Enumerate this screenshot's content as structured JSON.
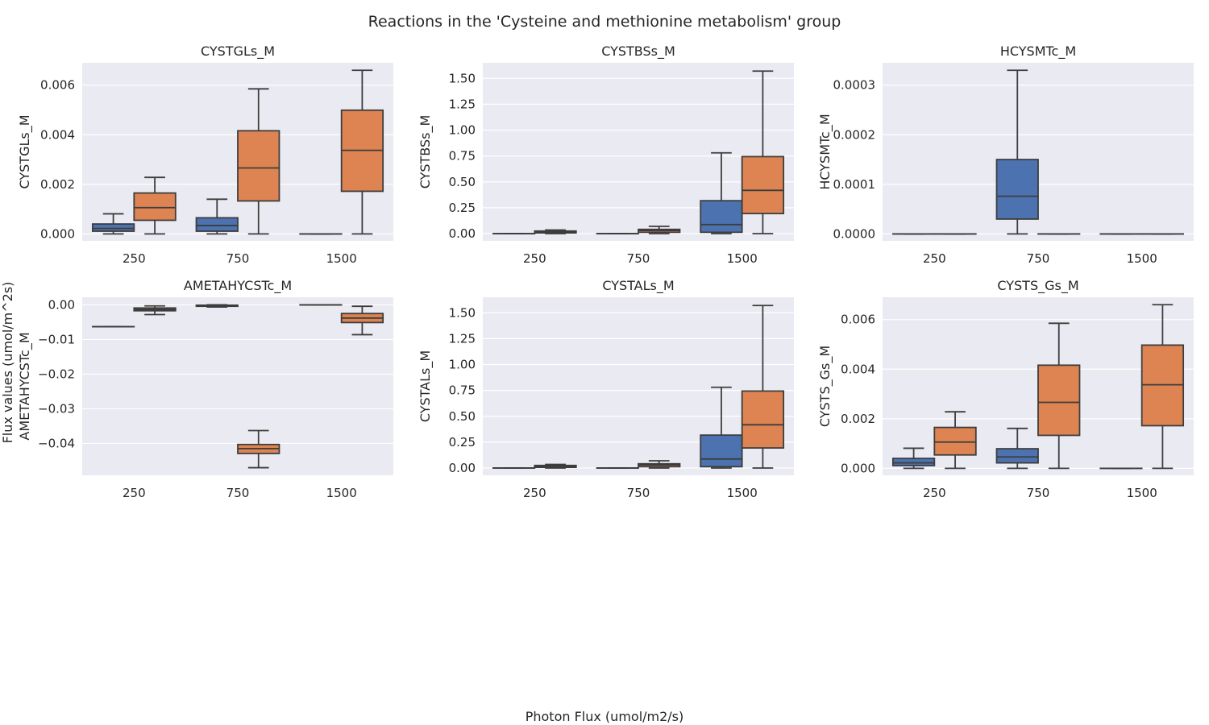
{
  "figure": {
    "title": "Reactions in the 'Cysteine and methionine metabolism' group",
    "xlabel": "Photon Flux (umol/m2/s)",
    "ylabel": "Flux values (umol/m^2s)"
  },
  "colors": {
    "panel_bg": "#eaeaf2",
    "grid": "#ffffff",
    "series_a": "#4c72b0",
    "series_b": "#dd8452",
    "stroke": "#3d3d3d"
  },
  "chart_data": [
    {
      "type": "box",
      "title": "CYSTGLs_M",
      "ylabel": "CYSTGLs_M",
      "categories": [
        "250",
        "750",
        "1500"
      ],
      "ylim": [
        -0.00028,
        0.0069
      ],
      "yticks": [
        0.0,
        0.002,
        0.004,
        0.006
      ],
      "ytick_labels": [
        "0.000",
        "0.002",
        "0.004",
        "0.006"
      ],
      "grid": true,
      "series": [
        {
          "color": "#4c72b0",
          "boxes": [
            {
              "min": 0.0,
              "q1": 0.00011,
              "median": 0.00022,
              "q3": 0.0004,
              "max": 0.00081
            },
            {
              "min": 0.0,
              "q1": 0.00011,
              "median": 0.00034,
              "q3": 0.00065,
              "max": 0.0014
            },
            {
              "min": 0.0,
              "q1": 0.0,
              "median": 0.0,
              "q3": 0.0,
              "max": 0.0
            }
          ]
        },
        {
          "color": "#dd8452",
          "boxes": [
            {
              "min": 0.0,
              "q1": 0.00055,
              "median": 0.00106,
              "q3": 0.00165,
              "max": 0.00228
            },
            {
              "min": 0.0,
              "q1": 0.00133,
              "median": 0.00266,
              "q3": 0.00416,
              "max": 0.00585
            },
            {
              "min": 0.0,
              "q1": 0.00172,
              "median": 0.00337,
              "q3": 0.00499,
              "max": 0.0066
            }
          ]
        }
      ]
    },
    {
      "type": "box",
      "title": "CYSTBSs_M",
      "ylabel": "CYSTBSs_M",
      "categories": [
        "250",
        "750",
        "1500"
      ],
      "ylim": [
        -0.07,
        1.65
      ],
      "yticks": [
        0.0,
        0.25,
        0.5,
        0.75,
        1.0,
        1.25,
        1.5
      ],
      "ytick_labels": [
        "0.00",
        "0.25",
        "0.50",
        "0.75",
        "1.00",
        "1.25",
        "1.50"
      ],
      "grid": true,
      "series": [
        {
          "color": "#4c72b0",
          "boxes": [
            {
              "min": 0.0,
              "q1": 0.0,
              "median": 0.0,
              "q3": 0.0,
              "max": 0.0
            },
            {
              "min": 0.0,
              "q1": 0.0,
              "median": 0.0,
              "q3": 0.0,
              "max": 0.0
            },
            {
              "min": 0.0,
              "q1": 0.013,
              "median": 0.087,
              "q3": 0.318,
              "max": 0.78
            }
          ]
        },
        {
          "color": "#dd8452",
          "boxes": [
            {
              "min": 0.0,
              "q1": 0.007,
              "median": 0.016,
              "q3": 0.025,
              "max": 0.035
            },
            {
              "min": 0.0,
              "q1": 0.013,
              "median": 0.03,
              "q3": 0.041,
              "max": 0.07
            },
            {
              "min": 0.0,
              "q1": 0.194,
              "median": 0.418,
              "q3": 0.744,
              "max": 1.57
            }
          ]
        }
      ]
    },
    {
      "type": "box",
      "title": "HCYSMTc_M",
      "ylabel": "HCYSMTc_M",
      "categories": [
        "250",
        "750",
        "1500"
      ],
      "ylim": [
        -1.4e-05,
        0.000345
      ],
      "yticks": [
        0.0,
        0.0001,
        0.0002,
        0.0003
      ],
      "ytick_labels": [
        "0.0000",
        "0.0001",
        "0.0002",
        "0.0003"
      ],
      "grid": true,
      "series": [
        {
          "color": "#4c72b0",
          "boxes": [
            {
              "min": 0.0,
              "q1": 0.0,
              "median": 0.0,
              "q3": 0.0,
              "max": 0.0
            },
            {
              "min": 0.0,
              "q1": 3e-05,
              "median": 7.6e-05,
              "q3": 0.00015,
              "max": 0.00033
            },
            {
              "min": 0.0,
              "q1": 0.0,
              "median": 0.0,
              "q3": 0.0,
              "max": 0.0
            }
          ]
        },
        {
          "color": "#dd8452",
          "boxes": [
            {
              "min": 0.0,
              "q1": 0.0,
              "median": 0.0,
              "q3": 0.0,
              "max": 0.0
            },
            {
              "min": 0.0,
              "q1": 0.0,
              "median": 0.0,
              "q3": 0.0,
              "max": 0.0
            },
            {
              "min": 0.0,
              "q1": 0.0,
              "median": 0.0,
              "q3": 0.0,
              "max": 0.0
            }
          ]
        }
      ]
    },
    {
      "type": "box",
      "title": "AMETAHYCSTc_M",
      "ylabel": "AMETAHYCSTc_M",
      "categories": [
        "250",
        "750",
        "1500"
      ],
      "ylim": [
        -0.0492,
        0.0022
      ],
      "yticks": [
        0.0,
        -0.01,
        -0.02,
        -0.03,
        -0.04
      ],
      "ytick_labels": [
        "0.00",
        "−0.01",
        "−0.02",
        "−0.03",
        "−0.04"
      ],
      "grid": true,
      "series": [
        {
          "color": "#4c72b0",
          "boxes": [
            {
              "min": -0.0063,
              "q1": -0.0063,
              "median": -0.0063,
              "q3": -0.0063,
              "max": -0.0063
            },
            {
              "min": -0.0006,
              "q1": -0.0004,
              "median": -0.0002,
              "q3": -0.0001,
              "max": 0.0
            },
            {
              "min": 0.0,
              "q1": 0.0,
              "median": 0.0,
              "q3": 0.0,
              "max": 0.0
            }
          ]
        },
        {
          "color": "#dd8452",
          "boxes": [
            {
              "min": -0.0028,
              "q1": -0.0017,
              "median": -0.0013,
              "q3": -0.0009,
              "max": -0.0003
            },
            {
              "min": -0.047,
              "q1": -0.0429,
              "median": -0.0415,
              "q3": -0.0403,
              "max": -0.0363
            },
            {
              "min": -0.0086,
              "q1": -0.0051,
              "median": -0.0038,
              "q3": -0.0025,
              "max": -0.0004
            }
          ]
        }
      ]
    },
    {
      "type": "box",
      "title": "CYSTALs_M",
      "ylabel": "CYSTALs_M",
      "categories": [
        "250",
        "750",
        "1500"
      ],
      "ylim": [
        -0.07,
        1.65
      ],
      "yticks": [
        0.0,
        0.25,
        0.5,
        0.75,
        1.0,
        1.25,
        1.5
      ],
      "ytick_labels": [
        "0.00",
        "0.25",
        "0.50",
        "0.75",
        "1.00",
        "1.25",
        "1.50"
      ],
      "grid": true,
      "series": [
        {
          "color": "#4c72b0",
          "boxes": [
            {
              "min": 0.0,
              "q1": 0.0,
              "median": 0.0,
              "q3": 0.0,
              "max": 0.0
            },
            {
              "min": 0.0,
              "q1": 0.0,
              "median": 0.0,
              "q3": 0.0,
              "max": 0.0
            },
            {
              "min": 0.0,
              "q1": 0.013,
              "median": 0.087,
              "q3": 0.318,
              "max": 0.78
            }
          ]
        },
        {
          "color": "#dd8452",
          "boxes": [
            {
              "min": 0.0,
              "q1": 0.007,
              "median": 0.016,
              "q3": 0.025,
              "max": 0.035
            },
            {
              "min": 0.0,
              "q1": 0.013,
              "median": 0.03,
              "q3": 0.041,
              "max": 0.07
            },
            {
              "min": 0.0,
              "q1": 0.194,
              "median": 0.418,
              "q3": 0.744,
              "max": 1.57
            }
          ]
        }
      ]
    },
    {
      "type": "box",
      "title": "CYSTS_Gs_M",
      "ylabel": "CYSTS_Gs_M",
      "categories": [
        "250",
        "750",
        "1500"
      ],
      "ylim": [
        -0.00028,
        0.0069
      ],
      "yticks": [
        0.0,
        0.002,
        0.004,
        0.006
      ],
      "ytick_labels": [
        "0.000",
        "0.002",
        "0.004",
        "0.006"
      ],
      "grid": true,
      "series": [
        {
          "color": "#4c72b0",
          "boxes": [
            {
              "min": 0.0,
              "q1": 0.00011,
              "median": 0.00022,
              "q3": 0.0004,
              "max": 0.00081
            },
            {
              "min": 0.0,
              "q1": 0.00022,
              "median": 0.00046,
              "q3": 0.00079,
              "max": 0.00161
            },
            {
              "min": 0.0,
              "q1": 0.0,
              "median": 0.0,
              "q3": 0.0,
              "max": 0.0
            }
          ]
        },
        {
          "color": "#dd8452",
          "boxes": [
            {
              "min": 0.0,
              "q1": 0.00054,
              "median": 0.00106,
              "q3": 0.00165,
              "max": 0.00228
            },
            {
              "min": 0.0,
              "q1": 0.00133,
              "median": 0.00266,
              "q3": 0.00416,
              "max": 0.00585
            },
            {
              "min": 0.0,
              "q1": 0.00172,
              "median": 0.00337,
              "q3": 0.00497,
              "max": 0.0066
            }
          ]
        }
      ]
    }
  ]
}
